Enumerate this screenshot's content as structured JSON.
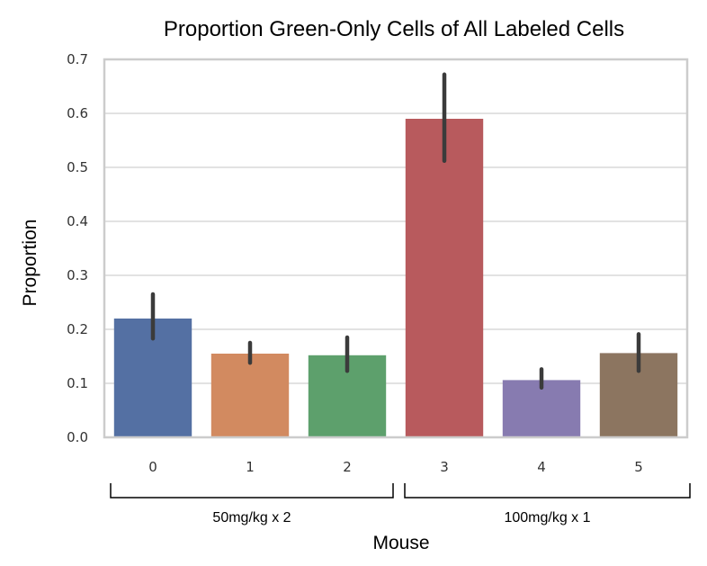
{
  "chart_data": {
    "type": "bar",
    "title": "Proportion Green-Only Cells of All Labeled Cells",
    "xlabel": "Mouse",
    "ylabel": "Proportion",
    "categories": [
      "0",
      "1",
      "2",
      "3",
      "4",
      "5"
    ],
    "values": [
      0.22,
      0.155,
      0.152,
      0.59,
      0.106,
      0.156
    ],
    "error_low": [
      0.183,
      0.138,
      0.123,
      0.512,
      0.092,
      0.123
    ],
    "error_high": [
      0.265,
      0.175,
      0.185,
      0.672,
      0.126,
      0.191
    ],
    "colors": [
      "#5470a3",
      "#d28a60",
      "#5da06c",
      "#b85a5d",
      "#877bb0",
      "#8c7560"
    ],
    "errorbar_color": "#3b3b3b",
    "ylim": [
      0,
      0.7
    ],
    "yticks": [
      "0.0",
      "0.1",
      "0.2",
      "0.3",
      "0.4",
      "0.5",
      "0.6",
      "0.7"
    ],
    "grid": true,
    "groups": [
      {
        "label": "50mg/kg x 2",
        "categories": [
          "0",
          "1",
          "2"
        ]
      },
      {
        "label": "100mg/kg x 1",
        "categories": [
          "3",
          "4",
          "5"
        ]
      }
    ]
  }
}
